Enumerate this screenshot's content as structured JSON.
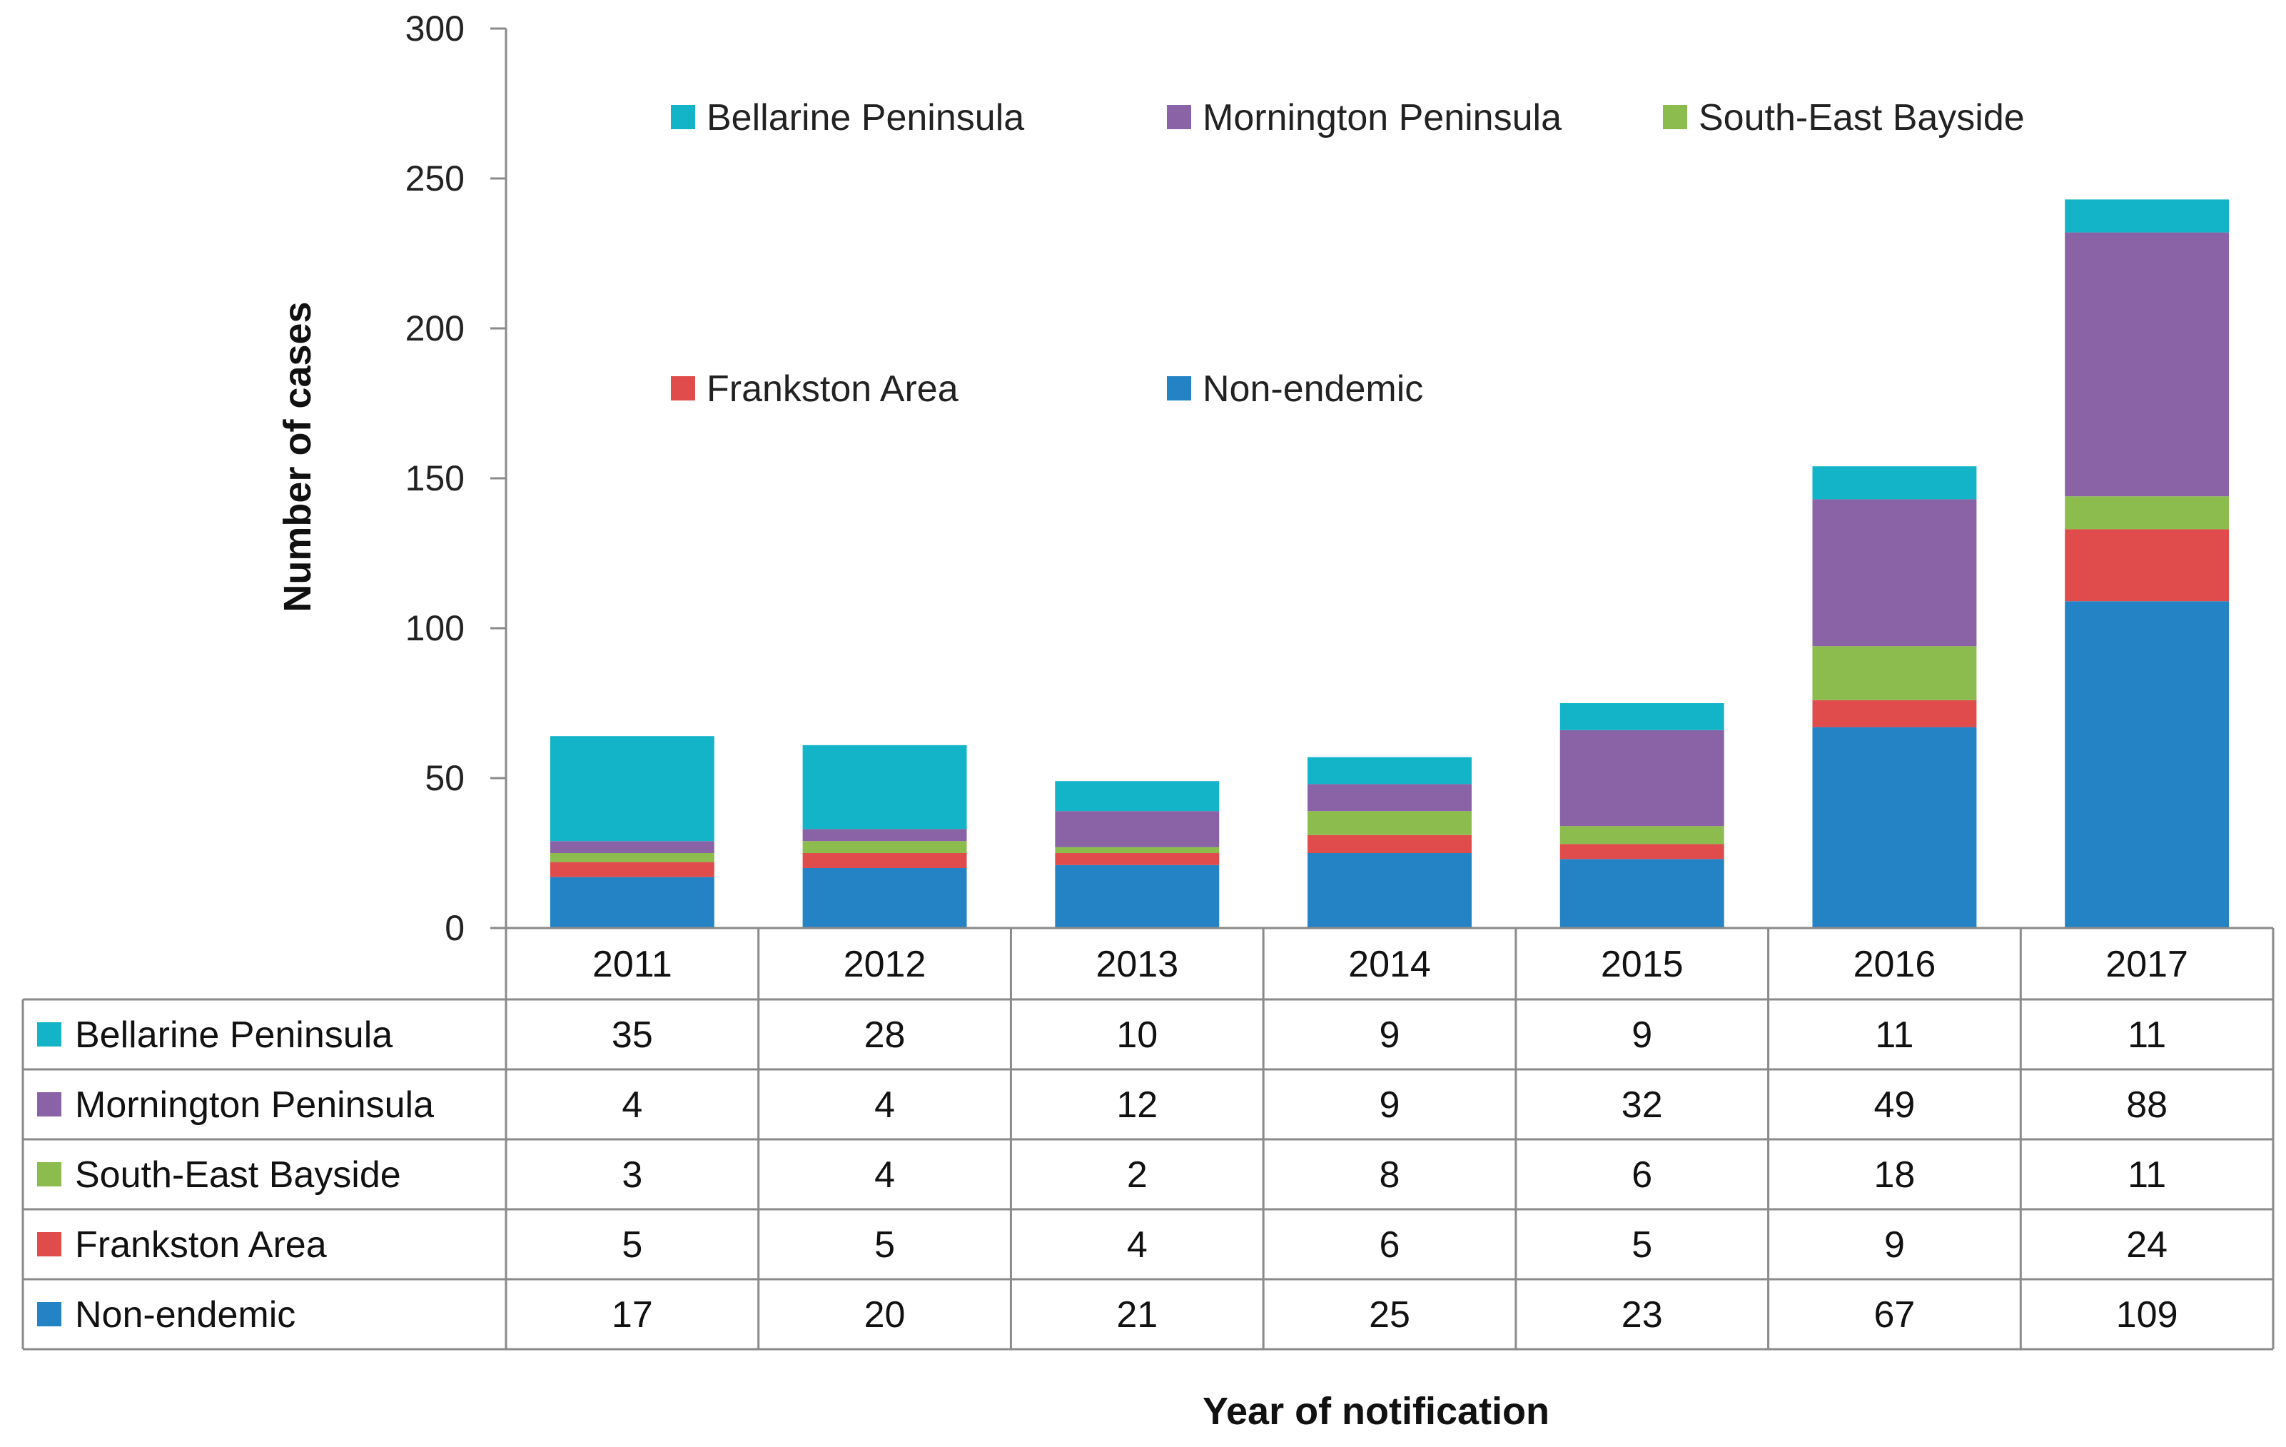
{
  "chart_data": {
    "type": "bar",
    "stacked": true,
    "ylabel": "Number of cases",
    "xlabel": "Year of notification",
    "ylim": [
      0,
      300
    ],
    "yticks": [
      0,
      50,
      100,
      150,
      200,
      250,
      300
    ],
    "categories": [
      "2011",
      "2012",
      "2013",
      "2014",
      "2015",
      "2016",
      "2017"
    ],
    "series": [
      {
        "name": "Non-endemic",
        "color": "#2483c5",
        "values": [
          17,
          20,
          21,
          25,
          23,
          67,
          109
        ]
      },
      {
        "name": "Frankston Area",
        "color": "#e04c4c",
        "values": [
          5,
          5,
          4,
          6,
          5,
          9,
          24
        ]
      },
      {
        "name": "South-East Bayside",
        "color": "#8cbb4e",
        "values": [
          3,
          4,
          2,
          8,
          6,
          18,
          11
        ]
      },
      {
        "name": "Mornington Peninsula",
        "color": "#8a63a6",
        "values": [
          4,
          4,
          12,
          9,
          32,
          49,
          88
        ]
      },
      {
        "name": "Bellarine Peninsula",
        "color": "#13b4c8",
        "values": [
          35,
          28,
          10,
          9,
          9,
          11,
          11
        ]
      }
    ],
    "legend_order": [
      "Bellarine Peninsula",
      "Mornington Peninsula",
      "South-East Bayside",
      "Frankston Area",
      "Non-endemic"
    ],
    "table_order": [
      "Bellarine Peninsula",
      "Mornington Peninsula",
      "South-East Bayside",
      "Frankston Area",
      "Non-endemic"
    ],
    "legend_position": "top-left inside plot",
    "data_table": true,
    "grid": false
  }
}
